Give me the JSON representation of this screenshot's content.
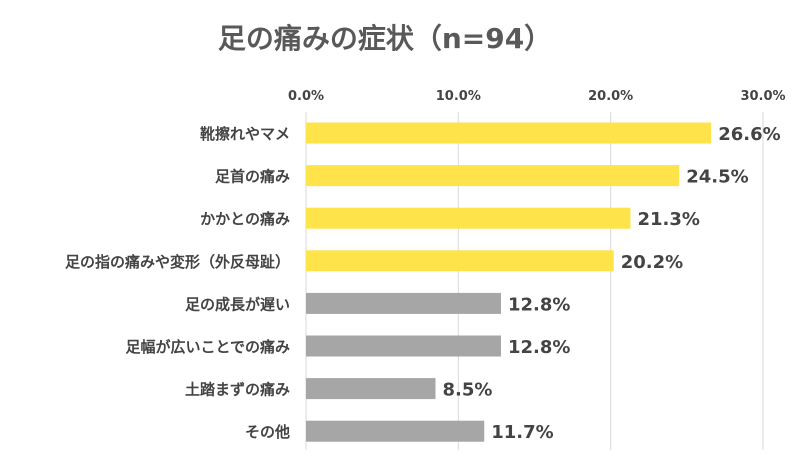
{
  "chart_data": {
    "type": "bar",
    "orientation": "horizontal",
    "title": "足の痛みの症状（n=94）",
    "xlabel": "",
    "ylabel": "",
    "xlim": [
      0,
      30
    ],
    "ticks": [
      0,
      10,
      20,
      30
    ],
    "tick_labels": [
      "0.0%",
      "10.0%",
      "20.0%",
      "30.0%"
    ],
    "categories": [
      "靴擦れやマメ",
      "足首の痛み",
      "かかとの痛み",
      "足の指の痛みや変形（外反母趾）",
      "足の成長が遅い",
      "足幅が広いことでの痛み",
      "土踏まずの痛み",
      "その他"
    ],
    "values": [
      26.6,
      24.5,
      21.3,
      20.2,
      12.8,
      12.8,
      8.5,
      11.7
    ],
    "value_labels": [
      "26.6%",
      "24.5%",
      "21.3%",
      "20.2%",
      "12.8%",
      "12.8%",
      "8.5%",
      "11.7%"
    ],
    "highlight": [
      true,
      true,
      true,
      true,
      false,
      false,
      false,
      false
    ],
    "grid": true,
    "legend": "none",
    "colors": {
      "highlight": "#FFE34A",
      "normal": "#A6A6A6",
      "grid": "#D9D9D9",
      "text": "#444444",
      "title": "#595959"
    }
  }
}
